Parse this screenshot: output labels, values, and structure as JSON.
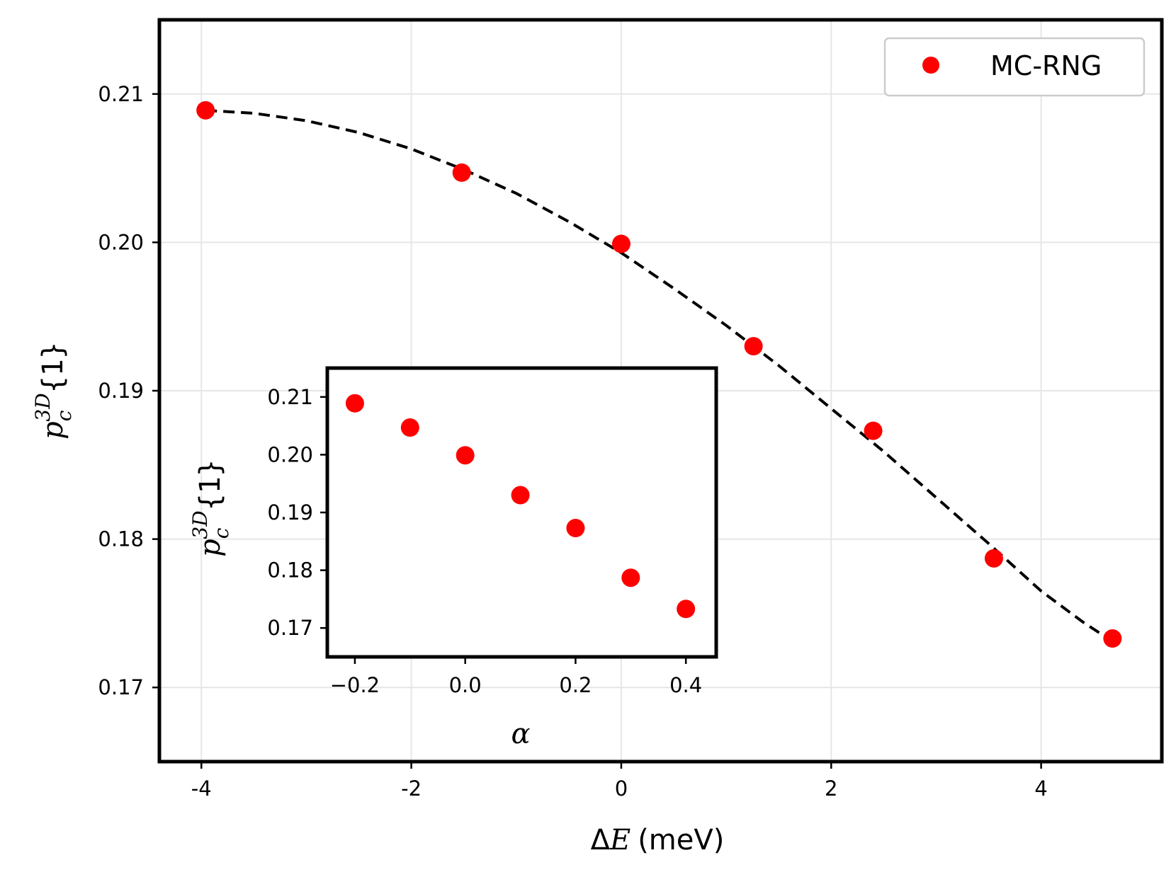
{
  "chart_data": [
    {
      "id": "main",
      "type": "scatter",
      "xlabel_prefix": "Δ",
      "xlabel_var": "E",
      "xlabel_unit": "(meV)",
      "ylabel": {
        "base": "p",
        "sub": "c",
        "sup": "3D",
        "tail": "{1}"
      },
      "xlim": [
        -4.4,
        5.15
      ],
      "ylim": [
        0.165,
        0.215
      ],
      "xticks": [
        -4,
        -2,
        0,
        2,
        4
      ],
      "xtick_labels": [
        "-4",
        "-2",
        "0",
        "2",
        "4"
      ],
      "yticks": [
        0.17,
        0.18,
        0.19,
        0.2,
        0.21
      ],
      "ytick_labels": [
        "0.17",
        "0.18",
        "0.19",
        "0.20",
        "0.21"
      ],
      "grid": true,
      "legend": {
        "position": "top-right",
        "entries": [
          "MC-RNG"
        ]
      },
      "series": [
        {
          "name": "MC-RNG",
          "marker": "circle",
          "color": "#ff0000",
          "x": [
            -3.96,
            -1.52,
            0.0,
            1.26,
            2.4,
            3.55,
            4.68
          ],
          "y": [
            0.2089,
            0.2047,
            0.1999,
            0.193,
            0.1873,
            0.1787,
            0.1733
          ]
        },
        {
          "name": "fit",
          "style": "dashed",
          "color": "#000000",
          "x": [
            -3.96,
            -3.5,
            -3.0,
            -2.5,
            -2.0,
            -1.5,
            -1.0,
            -0.5,
            0.0,
            0.5,
            1.0,
            1.5,
            2.0,
            2.5,
            3.0,
            3.5,
            4.0,
            4.4,
            4.68
          ],
          "y": [
            0.2089,
            0.2087,
            0.2082,
            0.2074,
            0.2063,
            0.2049,
            0.2033,
            0.2014,
            0.1993,
            0.1969,
            0.1944,
            0.1917,
            0.1888,
            0.1859,
            0.1828,
            0.1797,
            0.1765,
            0.1744,
            0.1731
          ]
        }
      ]
    },
    {
      "id": "inset",
      "type": "scatter",
      "xlabel": "α",
      "ylabel": {
        "base": "p",
        "sub": "c",
        "sup": "3D",
        "tail": "{1}"
      },
      "xlim": [
        -0.25,
        0.455
      ],
      "ylim": [
        0.165,
        0.215
      ],
      "xticks": [
        -0.2,
        0.0,
        0.2,
        0.4
      ],
      "xtick_labels": [
        "−0.2",
        "0.0",
        "0.2",
        "0.4"
      ],
      "yticks": [
        0.17,
        0.18,
        0.19,
        0.2,
        0.21
      ],
      "ytick_labels": [
        "0.17",
        "0.18",
        "0.19",
        "0.20",
        "0.21"
      ],
      "grid": false,
      "series": [
        {
          "name": "MC-RNG",
          "marker": "circle",
          "color": "#ff0000",
          "x": [
            -0.2,
            -0.1,
            0.0,
            0.1,
            0.2,
            0.3,
            0.4
          ],
          "y": [
            0.2089,
            0.2047,
            0.1999,
            0.193,
            0.1873,
            0.1787,
            0.1733
          ]
        }
      ]
    }
  ]
}
